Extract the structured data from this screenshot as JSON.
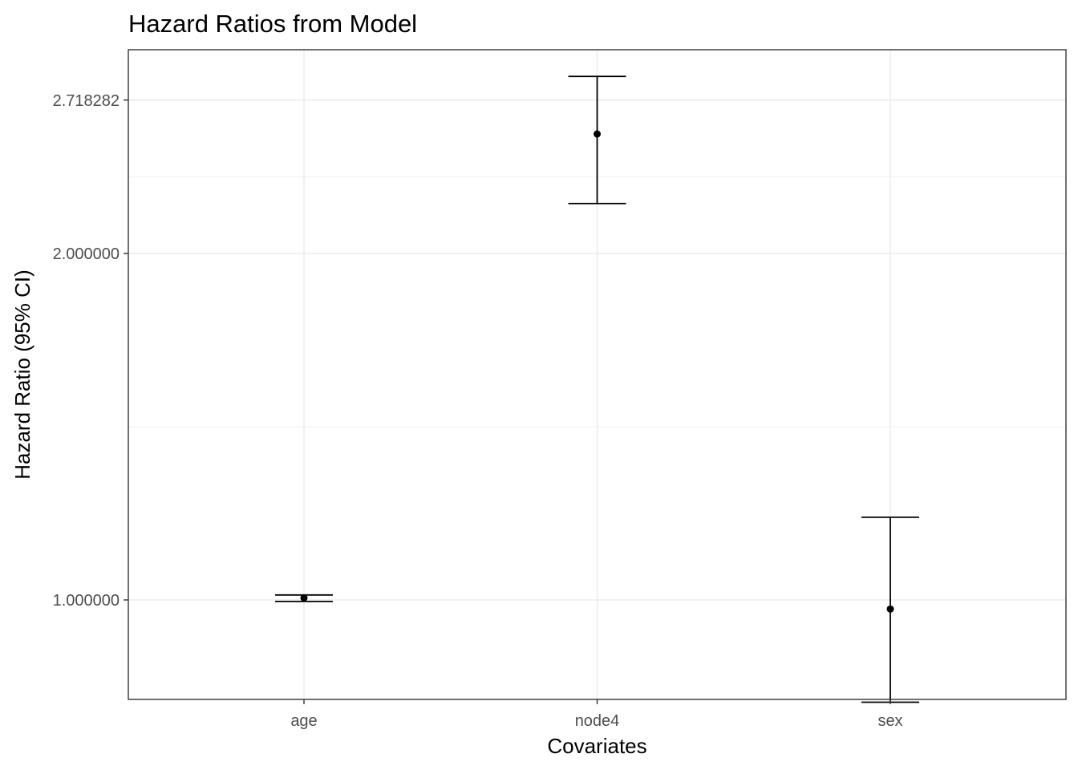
{
  "chart_data": {
    "type": "errorbar",
    "title": "Hazard Ratios from Model",
    "xlabel": "Covariates",
    "ylabel": "Hazard Ratio (95% CI)",
    "y_scale": "log",
    "y_ticks": [
      1.0,
      2.0,
      2.718282
    ],
    "y_tick_labels": [
      "1.000000",
      "2.000000",
      "2.718282"
    ],
    "ylim": [
      0.8,
      3.0
    ],
    "categories": [
      "age",
      "node4",
      "sex"
    ],
    "estimates": [
      1.004,
      2.54,
      0.982
    ],
    "lower": [
      0.997,
      2.21,
      0.815
    ],
    "upper": [
      1.01,
      2.85,
      1.18
    ],
    "grid": true,
    "theme": "bw",
    "color": "#000000"
  }
}
